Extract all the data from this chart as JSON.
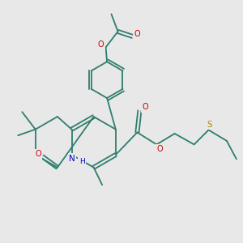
{
  "bg_color": "#e8e8e8",
  "bond_color": "#2e7d6e",
  "O_color": "#cc0000",
  "N_color": "#0000cc",
  "S_color": "#b8860b",
  "lw": 1.3,
  "figsize": [
    3.0,
    3.0
  ],
  "dpi": 100,
  "xlim": [
    0,
    10
  ],
  "ylim": [
    0,
    10
  ]
}
